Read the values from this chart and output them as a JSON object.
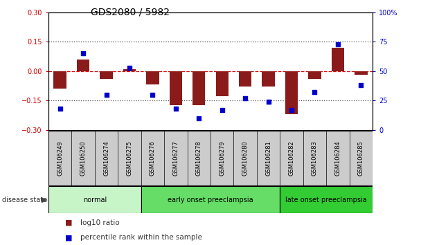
{
  "title": "GDS2080 / 5982",
  "samples": [
    "GSM106249",
    "GSM106250",
    "GSM106274",
    "GSM106275",
    "GSM106276",
    "GSM106277",
    "GSM106278",
    "GSM106279",
    "GSM106280",
    "GSM106281",
    "GSM106282",
    "GSM106283",
    "GSM106284",
    "GSM106285"
  ],
  "log10_ratio": [
    -0.09,
    0.06,
    -0.04,
    0.01,
    -0.07,
    -0.175,
    -0.175,
    -0.13,
    -0.08,
    -0.08,
    -0.22,
    -0.04,
    0.12,
    -0.02
  ],
  "percentile_rank": [
    18,
    65,
    30,
    53,
    30,
    18,
    10,
    17,
    27,
    24,
    17,
    32,
    73,
    38
  ],
  "groups": [
    {
      "label": "normal",
      "start": 0,
      "end": 4,
      "color": "#c8f5c8"
    },
    {
      "label": "early onset preeclampsia",
      "start": 4,
      "end": 10,
      "color": "#66dd66"
    },
    {
      "label": "late onset preeclampsia",
      "start": 10,
      "end": 14,
      "color": "#33cc33"
    }
  ],
  "bar_color": "#8b1a1a",
  "dot_color": "#0000cc",
  "ylim_left": [
    -0.3,
    0.3
  ],
  "ylim_right": [
    0,
    100
  ],
  "yticks_left": [
    -0.3,
    -0.15,
    0,
    0.15,
    0.3
  ],
  "yticks_right": [
    0,
    25,
    50,
    75,
    100
  ],
  "hline_color": "#dd0000",
  "dotted_color": "#555555",
  "background_color": "#ffffff",
  "xticklabel_bg": "#cccccc",
  "disease_state_label": "disease state",
  "legend_ratio_label": "log10 ratio",
  "legend_pct_label": "percentile rank within the sample",
  "title_fontsize": 10,
  "tick_fontsize": 7,
  "label_fontsize": 7.5
}
